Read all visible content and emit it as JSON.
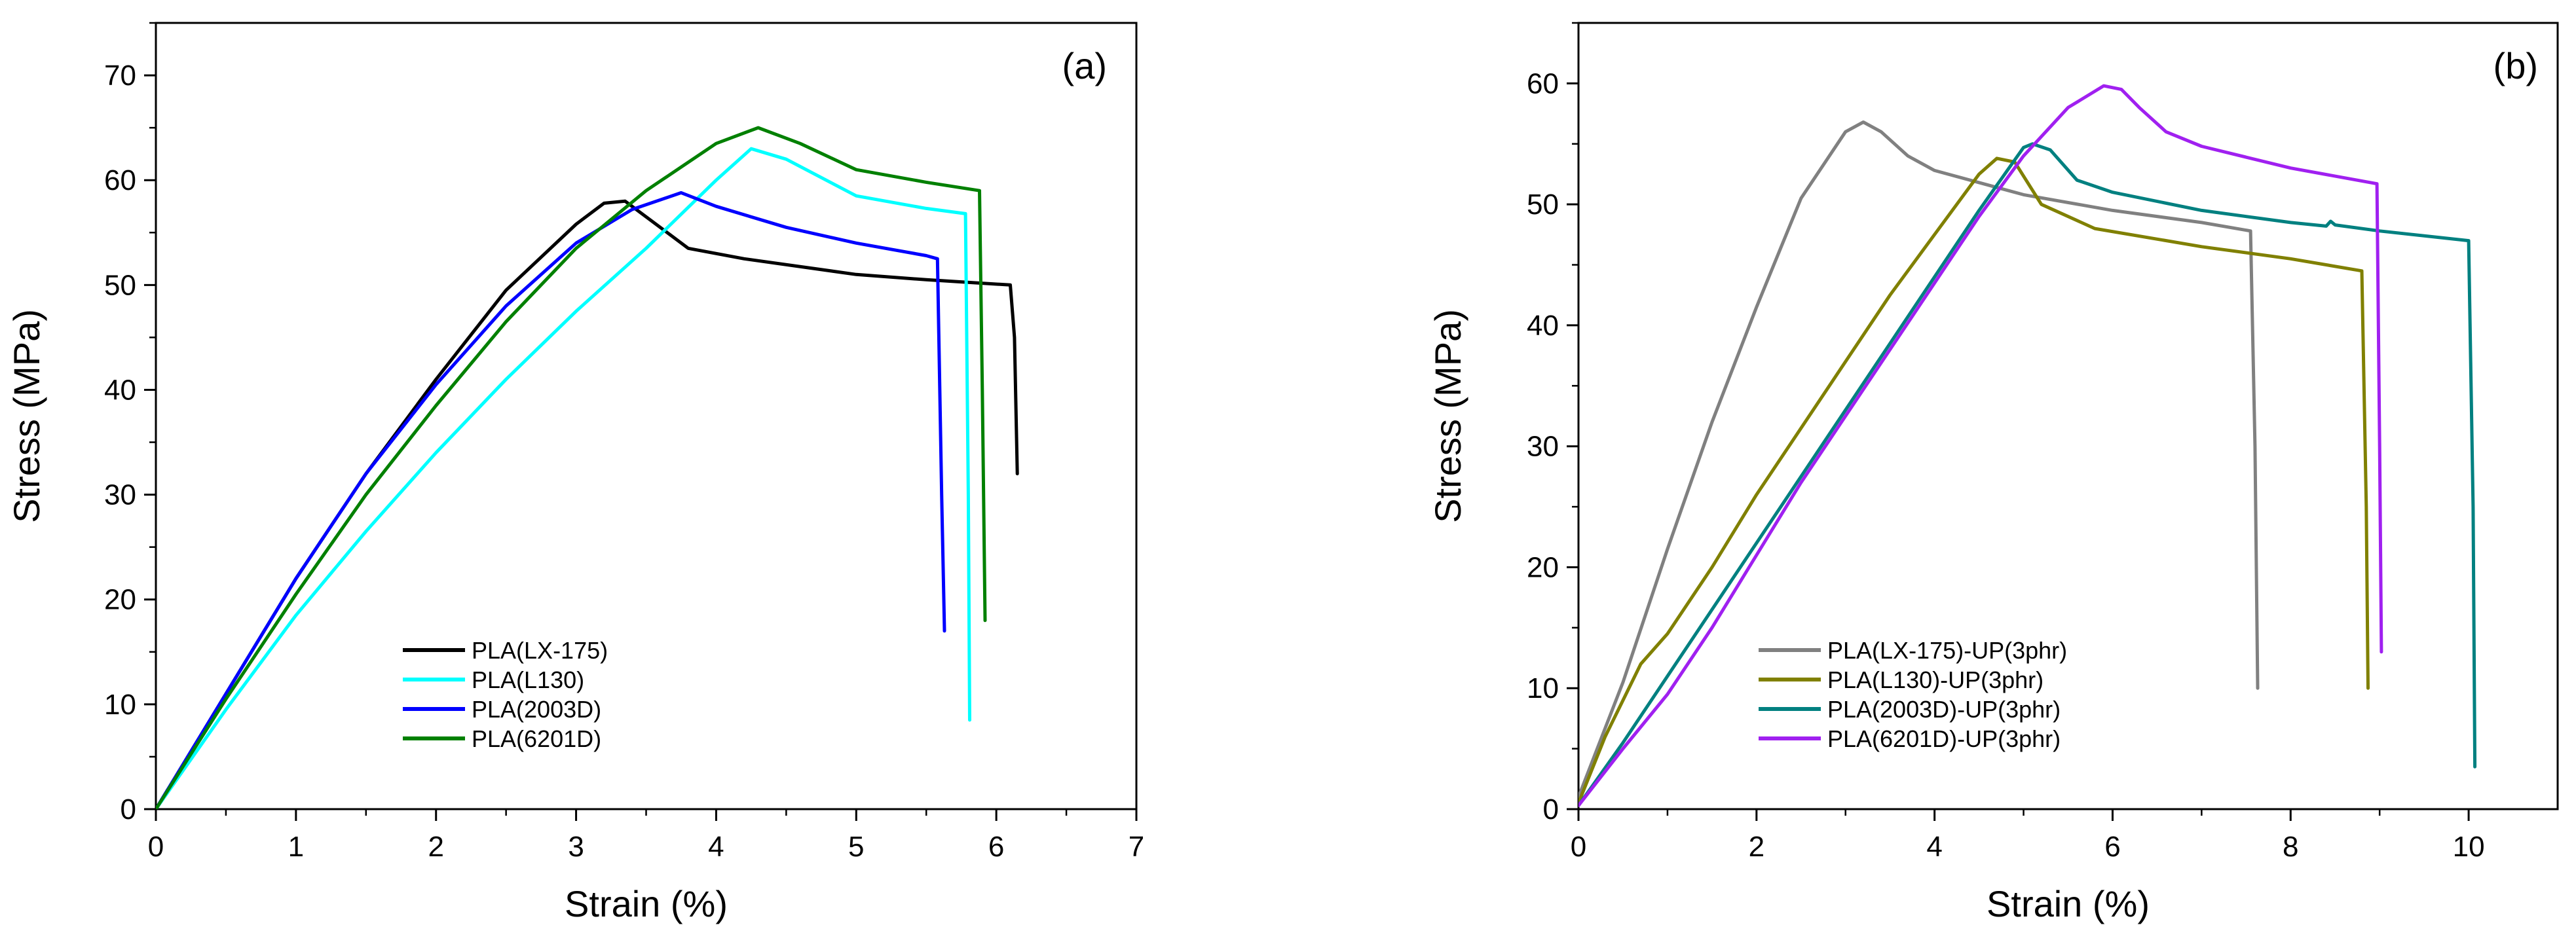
{
  "chart_data": [
    {
      "type": "line",
      "panel_label": "(a)",
      "xlabel": "Strain (%)",
      "ylabel": "Stress (MPa)",
      "xlim": [
        0,
        7
      ],
      "ylim": [
        0,
        75
      ],
      "xticks": [
        0,
        1,
        2,
        3,
        4,
        5,
        6,
        7
      ],
      "yticks": [
        0,
        10,
        20,
        30,
        40,
        50,
        60,
        70
      ],
      "xtick_labels": [
        "0",
        "1",
        "2",
        "3",
        "4",
        "5",
        "6",
        "7"
      ],
      "ytick_labels": [
        "0",
        "10",
        "20",
        "30",
        "40",
        "50",
        "60",
        "70"
      ],
      "legend_position": "lower-center",
      "series": [
        {
          "name": "PLA(LX-175)",
          "color": "#000000",
          "x": [
            0,
            0.5,
            1,
            1.5,
            2,
            2.5,
            3,
            3.2,
            3.35,
            3.5,
            3.8,
            4.2,
            5,
            5.5,
            6.1,
            6.13,
            6.15
          ],
          "y": [
            0,
            11,
            22,
            32,
            41,
            49.5,
            55.8,
            57.8,
            58,
            56.5,
            53.5,
            52.5,
            51,
            50.5,
            50,
            45,
            32
          ]
        },
        {
          "name": "PLA(L130)",
          "color": "#00FFFF",
          "x": [
            0,
            0.5,
            1,
            1.5,
            2,
            2.5,
            3,
            3.5,
            4,
            4.25,
            4.5,
            5,
            5.5,
            5.78,
            5.8,
            5.81
          ],
          "y": [
            0,
            9.5,
            18.5,
            26.5,
            34,
            41,
            47.5,
            53.5,
            60,
            63,
            62,
            58.5,
            57.3,
            56.8,
            30,
            8.5
          ]
        },
        {
          "name": "PLA(2003D)",
          "color": "#0000FF",
          "x": [
            0,
            0.5,
            1,
            1.5,
            2,
            2.5,
            3,
            3.4,
            3.75,
            4,
            4.5,
            5,
            5.5,
            5.58,
            5.61,
            5.63
          ],
          "y": [
            0,
            11,
            22,
            32,
            40.5,
            48,
            54,
            57.2,
            58.8,
            57.5,
            55.5,
            54,
            52.8,
            52.5,
            30,
            17
          ]
        },
        {
          "name": "PLA(6201D)",
          "color": "#008000",
          "x": [
            0,
            0.5,
            1,
            1.5,
            2,
            2.5,
            3,
            3.5,
            4,
            4.3,
            4.6,
            5,
            5.5,
            5.88,
            5.9,
            5.92
          ],
          "y": [
            0,
            10.5,
            20.5,
            30,
            38.5,
            46.5,
            53.5,
            59,
            63.5,
            65,
            63.5,
            61,
            59.8,
            59,
            40,
            18
          ]
        }
      ]
    },
    {
      "type": "line",
      "panel_label": "(b)",
      "xlabel": "Strain (%)",
      "ylabel": "Stress (MPa)",
      "xlim": [
        0,
        11
      ],
      "ylim": [
        0,
        65
      ],
      "xticks": [
        0,
        2,
        4,
        6,
        8,
        10
      ],
      "yticks": [
        0,
        10,
        20,
        30,
        40,
        50,
        60
      ],
      "xtick_labels": [
        "0",
        "2",
        "4",
        "6",
        "8",
        "10"
      ],
      "ytick_labels": [
        "0",
        "10",
        "20",
        "30",
        "40",
        "50",
        "60"
      ],
      "legend_position": "lower-center",
      "series": [
        {
          "name": "PLA(LX-175)-UP(3phr)",
          "color": "#808080",
          "x": [
            0,
            0.5,
            1,
            1.5,
            2,
            2.5,
            3,
            3.2,
            3.4,
            3.7,
            4,
            5,
            6,
            7,
            7.55,
            7.6,
            7.63
          ],
          "y": [
            1,
            10.5,
            21.5,
            32,
            41.5,
            50.5,
            56,
            56.8,
            56,
            54,
            52.8,
            50.8,
            49.5,
            48.5,
            47.8,
            30,
            10
          ]
        },
        {
          "name": "PLA(L130)-UP(3phr)",
          "color": "#808000",
          "x": [
            0,
            0.3,
            0.7,
            1,
            1.5,
            2,
            2.5,
            3,
            3.5,
            4,
            4.5,
            4.7,
            4.9,
            5.2,
            5.8,
            7,
            8,
            8.8,
            8.85,
            8.87
          ],
          "y": [
            0.5,
            6,
            12,
            14.5,
            20,
            26,
            31.5,
            37,
            42.5,
            47.5,
            52.5,
            53.8,
            53.5,
            50,
            48,
            46.5,
            45.5,
            44.5,
            25,
            10
          ]
        },
        {
          "name": "PLA(2003D)-UP(3phr)",
          "color": "#008080",
          "x": [
            0,
            0.5,
            1,
            1.5,
            2,
            2.5,
            3,
            3.5,
            4,
            4.5,
            5,
            5.1,
            5.3,
            5.6,
            6,
            7,
            8,
            8.4,
            8.45,
            8.5,
            9,
            10,
            10.05,
            10.07
          ],
          "y": [
            0.3,
            5.5,
            11,
            16.5,
            22,
            27.5,
            33,
            38.5,
            44,
            49.5,
            54.7,
            55,
            54.5,
            52,
            51,
            49.5,
            48.5,
            48.2,
            48.6,
            48.3,
            47.8,
            47,
            25,
            3.5
          ]
        },
        {
          "name": "PLA(6201D)-UP(3phr)",
          "color": "#A020F0",
          "x": [
            0,
            0.5,
            1,
            1.5,
            2,
            2.5,
            3,
            3.5,
            4,
            4.5,
            5,
            5.5,
            5.9,
            6.1,
            6.3,
            6.6,
            7,
            8,
            8.97,
            9,
            9.02
          ],
          "y": [
            0.3,
            5,
            9.5,
            15,
            21,
            27,
            32.5,
            38,
            43.5,
            49,
            54,
            58,
            59.8,
            59.5,
            58,
            56,
            54.8,
            53,
            51.7,
            30,
            13
          ]
        }
      ]
    }
  ]
}
